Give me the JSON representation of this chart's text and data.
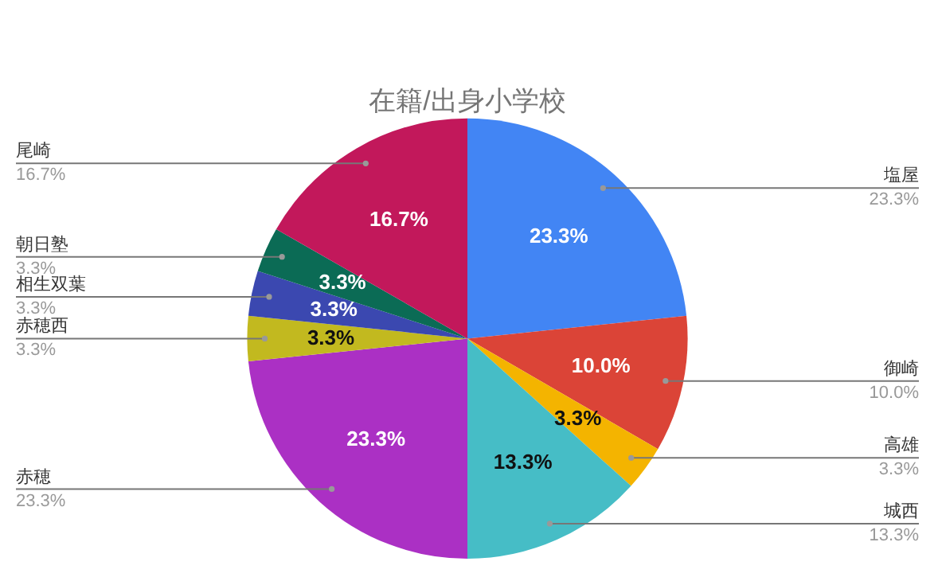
{
  "chart_data": {
    "type": "pie",
    "title": "在籍/出身小学校",
    "categories": [
      "塩屋",
      "御崎",
      "高雄",
      "城西",
      "赤穂",
      "赤穂西",
      "相生双葉",
      "朝日塾",
      "尾崎"
    ],
    "values": [
      23.3,
      10.0,
      3.3,
      13.3,
      23.3,
      3.3,
      3.3,
      3.3,
      16.7
    ],
    "value_labels": [
      "23.3%",
      "10.0%",
      "3.3%",
      "13.3%",
      "23.3%",
      "3.3%",
      "3.3%",
      "3.3%",
      "16.7%"
    ],
    "colors": [
      "#4285f4",
      "#db4437",
      "#f4b400",
      "#46bdc6",
      "#ab30c4",
      "#c2b91f",
      "#3b48b0",
      "#0b6b55",
      "#c2185b"
    ],
    "legend": false
  }
}
